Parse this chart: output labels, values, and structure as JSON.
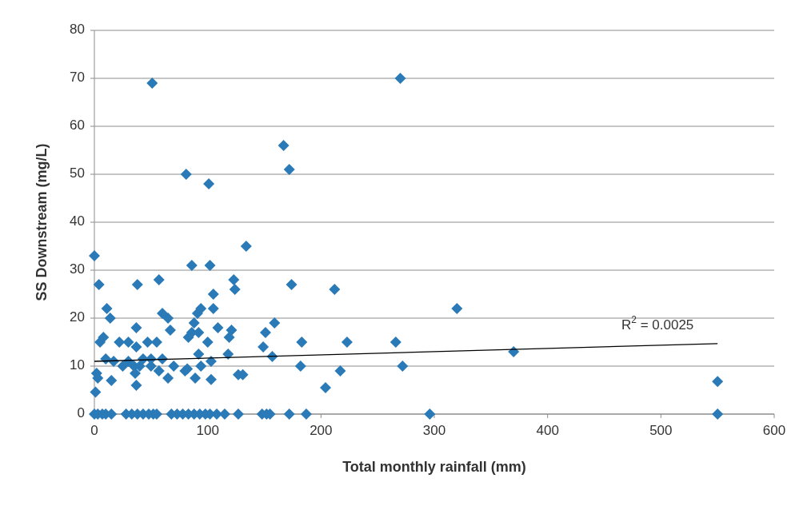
{
  "chart_data": {
    "type": "scatter",
    "xlabel": "Total monthly rainfall (mm)",
    "ylabel": "SS Downstream (mg/L)",
    "xlim": [
      0,
      600
    ],
    "xticks": [
      0,
      100,
      200,
      300,
      400,
      500,
      600
    ],
    "ylim": [
      0,
      80
    ],
    "yticks": [
      0,
      10,
      20,
      30,
      40,
      50,
      60,
      70,
      80
    ],
    "grid": "y",
    "marker": "diamond",
    "annotations": [
      "R$^{2}$ = 0.0025"
    ],
    "series": [
      {
        "color": "#2a7ab8",
        "x": [
          51,
          270,
          167,
          172,
          81,
          101,
          134,
          0,
          86,
          102,
          4,
          38,
          57,
          123,
          124,
          105,
          105,
          174,
          212,
          320,
          11,
          14,
          60,
          65,
          94,
          91,
          88,
          86,
          92,
          109,
          121,
          119,
          37,
          67,
          159,
          151,
          149,
          157,
          8,
          5,
          22,
          30,
          37,
          47,
          55,
          100,
          83,
          10,
          17,
          30,
          43,
          50,
          60,
          92,
          103,
          118,
          35,
          25,
          40,
          50,
          57,
          70,
          80,
          2,
          3,
          15,
          37,
          65,
          82,
          89,
          103,
          94,
          127,
          131,
          1,
          36,
          183,
          223,
          266,
          370,
          182,
          272,
          217,
          204,
          550,
          550,
          0,
          3,
          7,
          10,
          15,
          28,
          33,
          38,
          43,
          48,
          52,
          55,
          68,
          73,
          78,
          83,
          88,
          93,
          98,
          102,
          108,
          115,
          127,
          148,
          152,
          155,
          172,
          187,
          296
        ],
        "values": [
          69,
          70,
          56,
          51,
          50,
          48,
          35,
          33,
          31,
          31,
          27,
          27,
          28,
          28,
          26,
          25,
          22,
          27,
          26,
          22,
          22,
          20,
          21,
          20,
          22,
          21,
          19,
          17,
          17,
          18,
          17.5,
          16,
          18,
          17.5,
          19,
          17,
          14,
          12,
          16,
          15,
          15,
          15,
          14,
          15,
          15,
          15,
          16,
          11.5,
          11,
          11,
          11.5,
          11.5,
          11.5,
          12.5,
          11,
          12.5,
          10,
          10,
          10,
          10,
          9,
          10,
          9,
          8.5,
          7.5,
          7,
          6,
          7.5,
          9.4,
          7.5,
          7.2,
          10,
          8.2,
          8.2,
          4.6,
          8.5,
          15,
          15,
          15,
          13,
          10,
          10,
          9,
          5.5,
          6.8,
          0,
          0,
          0,
          0,
          0,
          0,
          0,
          0,
          0,
          0,
          0,
          0,
          0,
          0,
          0,
          0,
          0,
          0,
          0,
          0,
          0,
          0,
          0,
          0,
          0,
          0,
          0,
          0,
          0,
          0
        ]
      },
      {
        "type": "line",
        "color": "#000000",
        "marker": "none",
        "x": [
          0,
          550
        ],
        "values": [
          11,
          14.7
        ]
      }
    ]
  }
}
